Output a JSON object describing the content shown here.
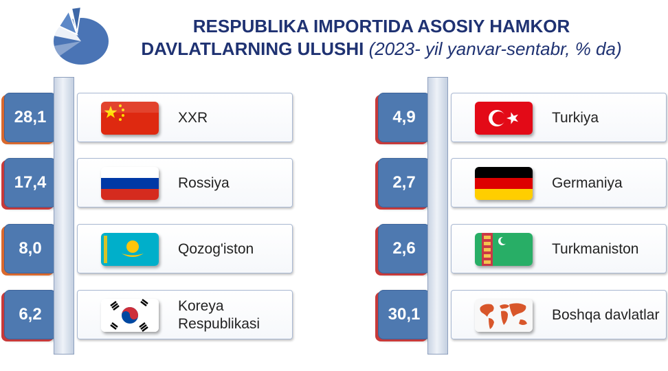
{
  "header": {
    "title_line1": "RESPUBLIKA IMPORTIDA  ASOSIY HAMKOR",
    "title_line2": "DAVLATLARNING ULUSHI",
    "subtitle": "(2023- yil yanvar-sentabr, % da)"
  },
  "icons": {
    "logo": "pie-chart-icon",
    "flags": [
      "china-flag",
      "russia-flag",
      "kazakhstan-flag",
      "south-korea-flag",
      "turkey-flag",
      "germany-flag",
      "turkmenistan-flag",
      "world-map-icon"
    ]
  },
  "colors": {
    "title": "#1f3272",
    "badge": "#4e79b0",
    "accent_orange": "#d9692e",
    "accent_red": "#c73a3a"
  },
  "chart_data": {
    "type": "table",
    "title": "RESPUBLIKA IMPORTIDA  ASOSIY HAMKOR DAVLATLARNING ULUSHI (2023- yil yanvar-sentabr, % da)",
    "categories": [
      "XXR",
      "Rossiya",
      "Qozog'iston",
      "Koreya Respublikasi",
      "Turkiya",
      "Germaniya",
      "Turkmaniston",
      "Boshqa davlatlar"
    ],
    "values": [
      28.1,
      17.4,
      8.0,
      6.2,
      4.9,
      2.7,
      2.6,
      30.1
    ],
    "value_labels": [
      "28,1",
      "17,4",
      "8,0",
      "6,2",
      "4,9",
      "2,7",
      "2,6",
      "30,1"
    ],
    "unit": "%"
  }
}
